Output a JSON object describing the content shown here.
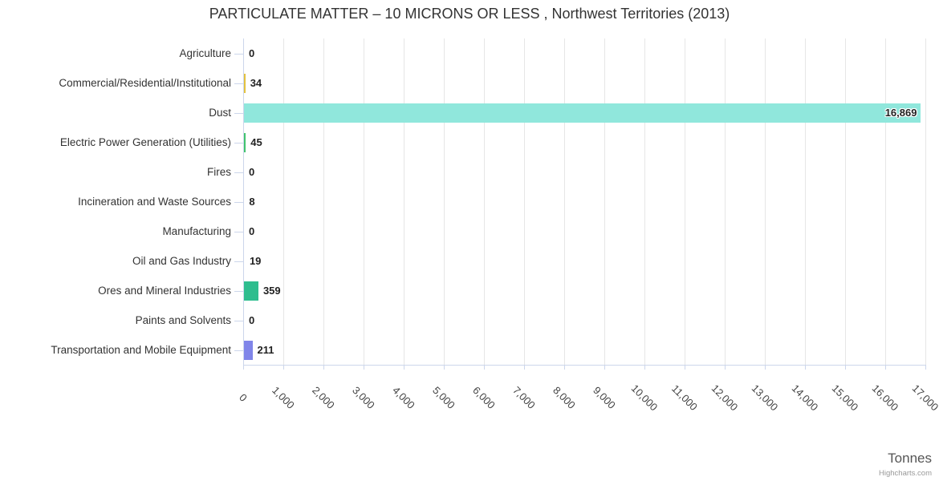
{
  "title": "PARTICULATE MATTER – 10 MICRONS OR LESS , Northwest Territories (2013)",
  "xaxis_title": "Tonnes",
  "credit": "Highcharts.com",
  "chart_data": {
    "type": "bar",
    "orientation": "horizontal",
    "title": "PARTICULATE MATTER – 10 MICRONS OR LESS , Northwest Territories (2013)",
    "xlabel": "Tonnes",
    "ylabel": "",
    "xlim": [
      0,
      17000
    ],
    "tick_interval": 1000,
    "grid": true,
    "legend": "none",
    "categories": [
      "Agriculture",
      "Commercial/Residential/Institutional",
      "Dust",
      "Electric Power Generation (Utilities)",
      "Fires",
      "Incineration and Waste Sources",
      "Manufacturing",
      "Oil and Gas Industry",
      "Ores and Mineral Industries",
      "Paints and Solvents",
      "Transportation and Mobile Equipment"
    ],
    "values": [
      0,
      34,
      16869,
      45,
      0,
      8,
      0,
      19,
      359,
      0,
      211
    ],
    "value_labels": [
      "0",
      "34",
      "16,869",
      "45",
      "0",
      "8",
      "0",
      "19",
      "359",
      "0",
      "211"
    ],
    "bar_colors": [
      null,
      "#e4c23d",
      "#90e7dc",
      "#41c46e",
      null,
      null,
      null,
      null,
      "#2ebd8e",
      null,
      "#8085e9"
    ],
    "x_tick_labels": [
      "0",
      "1,000",
      "2,000",
      "3,000",
      "4,000",
      "5,000",
      "6,000",
      "7,000",
      "8,000",
      "9,000",
      "10,000",
      "11,000",
      "12,000",
      "13,000",
      "14,000",
      "15,000",
      "16,000",
      "17,000"
    ]
  },
  "colors": {
    "grid_line": "#e6e6e6",
    "axis_line": "#ccd6eb",
    "title_text": "#333333",
    "category_label_text": "#333333",
    "tick_label_text": "#444444",
    "value_label_text": "#222222",
    "axis_title_text": "#555555",
    "credit_text": "#999999",
    "background": "#ffffff"
  }
}
